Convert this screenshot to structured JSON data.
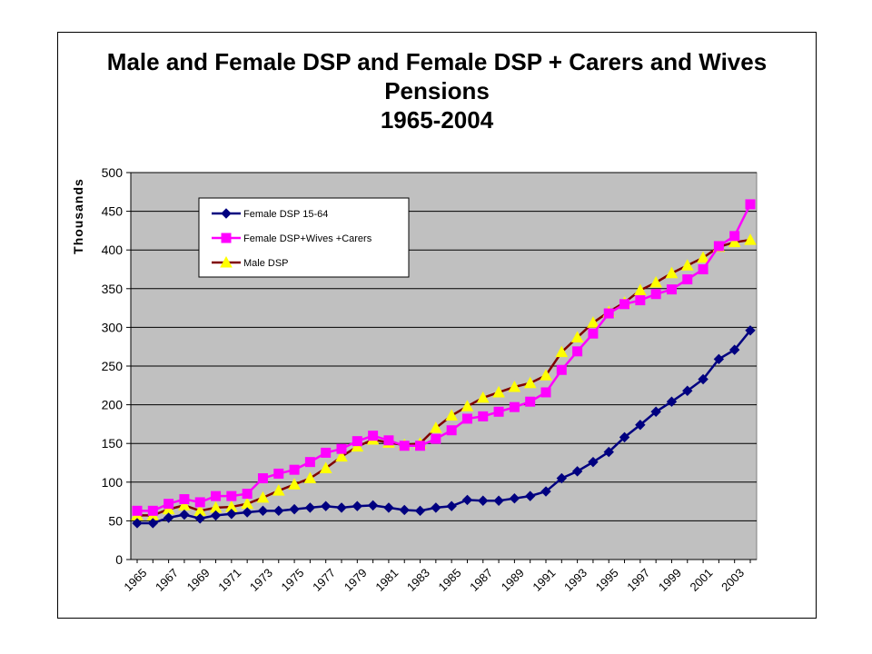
{
  "chart_data": {
    "type": "line",
    "title_lines": [
      "Male and Female DSP and Female DSP + Carers and Wives",
      "Pensions",
      "1965-2004"
    ],
    "xlabel": "",
    "ylabel": "Thousands",
    "ylim": [
      0,
      500
    ],
    "yticks": [
      0,
      50,
      100,
      150,
      200,
      250,
      300,
      350,
      400,
      450,
      500
    ],
    "x": [
      1965,
      1966,
      1967,
      1968,
      1969,
      1970,
      1971,
      1972,
      1973,
      1974,
      1975,
      1976,
      1977,
      1978,
      1979,
      1980,
      1981,
      1982,
      1983,
      1984,
      1985,
      1986,
      1987,
      1988,
      1989,
      1990,
      1991,
      1992,
      1993,
      1994,
      1995,
      1996,
      1997,
      1998,
      1999,
      2000,
      2001,
      2002,
      2003,
      2004
    ],
    "xtick_labels": [
      "1965",
      "1967",
      "1969",
      "1971",
      "1973",
      "1975",
      "1977",
      "1979",
      "1981",
      "1983",
      "1985",
      "1987",
      "1989",
      "1991",
      "1993",
      "1995",
      "1997",
      "1999",
      "2001",
      "2003"
    ],
    "grid": true,
    "legend_position": "upper-left inside plot",
    "plot_background": "#c0c0c0",
    "series": [
      {
        "name": "Female DSP 15-64",
        "color": "#000080",
        "marker": "diamond",
        "values": [
          47,
          47,
          54,
          58,
          53,
          57,
          59,
          61,
          63,
          63,
          65,
          67,
          69,
          67,
          69,
          70,
          67,
          64,
          63,
          67,
          69,
          77,
          76,
          76,
          79,
          82,
          88,
          105,
          114,
          126,
          139,
          158,
          174,
          191,
          204,
          218,
          233,
          259,
          271,
          296
        ]
      },
      {
        "name": "Female DSP+Wives +Carers",
        "color": "#ff00ff",
        "marker": "square",
        "values": [
          63,
          63,
          72,
          78,
          74,
          82,
          82,
          85,
          105,
          111,
          116,
          126,
          138,
          143,
          153,
          160,
          154,
          147,
          147,
          156,
          167,
          182,
          185,
          191,
          197,
          204,
          216,
          245,
          269,
          292,
          318,
          330,
          335,
          343,
          349,
          362,
          375,
          405,
          418,
          459
        ]
      },
      {
        "name": "Male DSP",
        "color": "#800000",
        "marker": "triangle",
        "marker_color": "#ffff00",
        "values": [
          57,
          57,
          65,
          70,
          63,
          67,
          68,
          72,
          80,
          89,
          97,
          105,
          118,
          133,
          146,
          155,
          151,
          148,
          150,
          170,
          186,
          198,
          209,
          216,
          223,
          228,
          238,
          268,
          287,
          306,
          320,
          332,
          348,
          358,
          370,
          380,
          390,
          404,
          410,
          413
        ]
      }
    ]
  }
}
